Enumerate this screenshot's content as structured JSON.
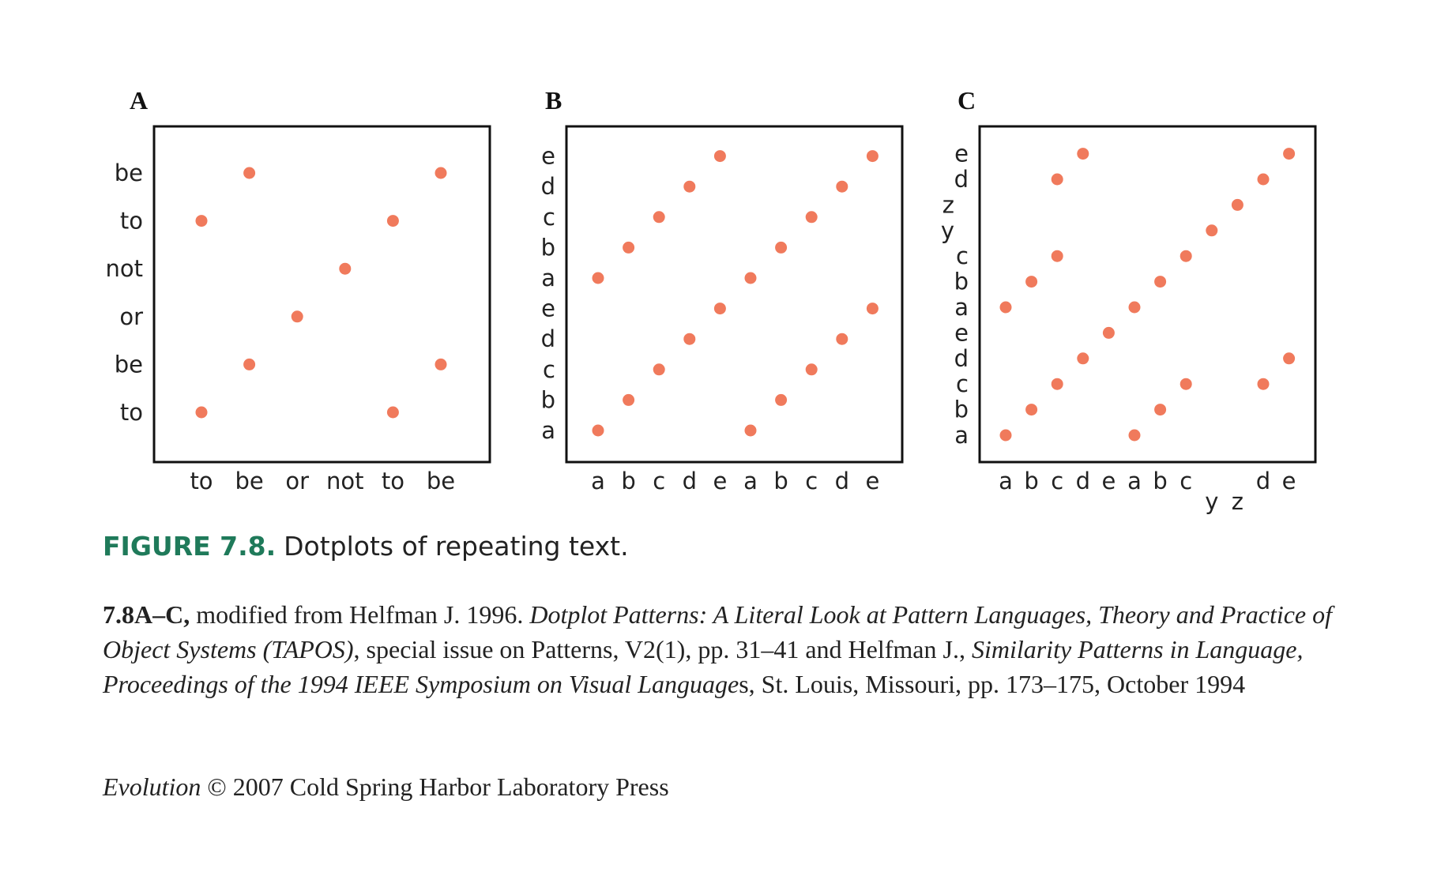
{
  "chart_data": [
    {
      "type": "scatter",
      "panel": "A",
      "x_ticks": [
        "to",
        "be",
        "or",
        "not",
        "to",
        "be"
      ],
      "y_ticks": [
        "to",
        "be",
        "or",
        "not",
        "to",
        "be"
      ],
      "points": [
        [
          1,
          1
        ],
        [
          5,
          1
        ],
        [
          2,
          2
        ],
        [
          6,
          2
        ],
        [
          3,
          3
        ],
        [
          4,
          4
        ],
        [
          1,
          5
        ],
        [
          5,
          5
        ],
        [
          2,
          6
        ],
        [
          6,
          6
        ]
      ]
    },
    {
      "type": "scatter",
      "panel": "B",
      "x_ticks": [
        "a",
        "b",
        "c",
        "d",
        "e",
        "a",
        "b",
        "c",
        "d",
        "e"
      ],
      "y_ticks": [
        "a",
        "b",
        "c",
        "d",
        "e",
        "a",
        "b",
        "c",
        "d",
        "e"
      ],
      "points": [
        [
          1,
          1
        ],
        [
          2,
          2
        ],
        [
          3,
          3
        ],
        [
          4,
          4
        ],
        [
          5,
          5
        ],
        [
          6,
          6
        ],
        [
          7,
          7
        ],
        [
          8,
          8
        ],
        [
          9,
          9
        ],
        [
          10,
          10
        ],
        [
          6,
          1
        ],
        [
          7,
          2
        ],
        [
          8,
          3
        ],
        [
          9,
          4
        ],
        [
          10,
          5
        ],
        [
          1,
          6
        ],
        [
          2,
          7
        ],
        [
          3,
          8
        ],
        [
          4,
          9
        ],
        [
          5,
          10
        ]
      ]
    },
    {
      "type": "scatter",
      "panel": "C",
      "x_ticks": [
        "a",
        "b",
        "c",
        "d",
        "e",
        "a",
        "b",
        "c",
        "y",
        "z",
        "d",
        "e"
      ],
      "y_ticks": [
        "a",
        "b",
        "c",
        "d",
        "e",
        "a",
        "b",
        "c",
        "y",
        "z",
        "d",
        "e"
      ],
      "points": [
        [
          1,
          1
        ],
        [
          2,
          2
        ],
        [
          3,
          3
        ],
        [
          4,
          4
        ],
        [
          5,
          5
        ],
        [
          6,
          6
        ],
        [
          7,
          7
        ],
        [
          8,
          8
        ],
        [
          9,
          9
        ],
        [
          10,
          10
        ],
        [
          11,
          11
        ],
        [
          12,
          12
        ],
        [
          6,
          1
        ],
        [
          7,
          2
        ],
        [
          8,
          3
        ],
        [
          11,
          3
        ],
        [
          12,
          4
        ],
        [
          1,
          6
        ],
        [
          2,
          7
        ],
        [
          3,
          8
        ],
        [
          3,
          11
        ],
        [
          4,
          12
        ]
      ]
    }
  ],
  "caption": {
    "label": "FIGURE 7.8.",
    "text": "Dotplots of repeating text."
  },
  "credits": {
    "lead": "7.8A–C,",
    "t1": " modified from Helfman J. 1996. ",
    "i1": "Dotplot Patterns: A Literal Look at Pattern Languages, Theory and Practice of Object Systems (TAPOS)",
    "t2": ", special issue on Patterns, V2(1), pp. 31–41 and Helfman J., ",
    "i2": "Similarity Patterns in Language, Proceedings of the 1994 IEEE Symposium on Visual Language",
    "t3": "s, St. Louis, Missouri, pp. 173–175, October 1994"
  },
  "copyright": {
    "title": "Evolution",
    "text": " © 2007 Cold Spring Harbor Laboratory Press"
  },
  "colors": {
    "dot": "#f07a5c",
    "caption_label": "#1f7a5a"
  }
}
